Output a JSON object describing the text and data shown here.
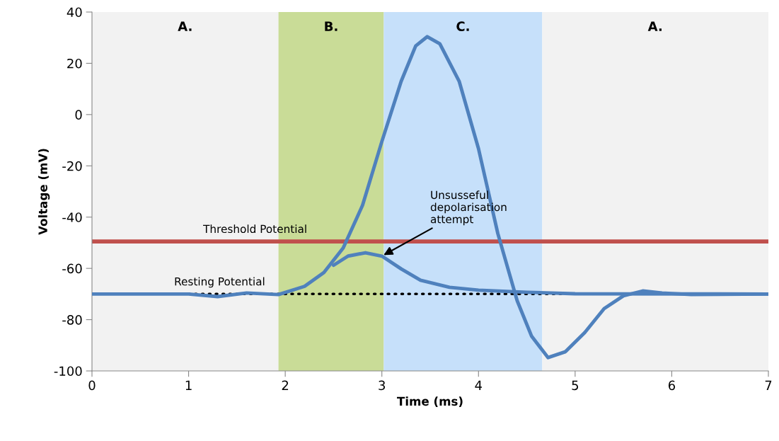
{
  "chart_data": {
    "type": "line",
    "xlabel": "Time (ms)",
    "ylabel": "Voltage (mV)",
    "xlim": [
      0,
      7
    ],
    "xticks": [
      0,
      1,
      2,
      3,
      4,
      5,
      6,
      7
    ],
    "ylim": [
      -100,
      40
    ],
    "yticks": [
      -100,
      -80,
      -60,
      -40,
      -20,
      0,
      20,
      40
    ],
    "grid": false,
    "legend": false,
    "marker": "none",
    "line_style": "solid",
    "series": [
      {
        "color": "#4f81bd",
        "x": [
          0,
          1.0,
          1.3,
          1.6,
          1.93,
          2.2,
          2.4,
          2.6,
          2.8,
          3.0,
          3.2,
          3.35,
          3.47,
          3.6,
          3.8,
          4.0,
          4.2,
          4.4,
          4.55,
          4.72,
          4.9,
          5.1,
          5.3,
          5.5,
          5.7,
          5.9,
          6.2,
          7
        ],
        "values": [
          -70,
          -70,
          -71,
          -69.6,
          -70.2,
          -67,
          -61.6,
          -52,
          -35.4,
          -10.5,
          13,
          26.8,
          30.4,
          27.6,
          13,
          -13.3,
          -46.4,
          -72.6,
          -86.5,
          -94.8,
          -92.5,
          -85,
          -75.7,
          -70.7,
          -68.8,
          -69.6,
          -70.2,
          -70
        ]
      },
      {
        "color": "#4f81bd",
        "x": [
          2.5,
          2.65,
          2.83,
          3.0,
          3.2,
          3.4,
          3.7,
          4.0,
          4.5,
          5.0,
          7
        ],
        "values": [
          -58.8,
          -55.2,
          -53.9,
          -55.2,
          -60.2,
          -64.6,
          -67.4,
          -68.5,
          -69.3,
          -69.9,
          -70
        ]
      }
    ],
    "ref_lines": [
      {
        "axis": "y",
        "value": -49.5,
        "label": "Threshold Potential",
        "color": "#c0504d",
        "line_style": "solid"
      },
      {
        "axis": "y",
        "value": -70,
        "label": "Resting Potential",
        "color": "#000000",
        "line_style": "dotted"
      }
    ],
    "bands": [
      {
        "axis": "x",
        "from": 0,
        "to": 1.93,
        "label": "A.",
        "color": "#f2f2f2"
      },
      {
        "axis": "x",
        "from": 1.93,
        "to": 3.02,
        "label": "B.",
        "color": "#c9dc97"
      },
      {
        "axis": "x",
        "from": 3.02,
        "to": 4.66,
        "label": "C.",
        "color": "#c6e0fa"
      },
      {
        "axis": "x",
        "from": 4.66,
        "to": 7,
        "label": "A.",
        "color": "#f2f2f2"
      }
    ],
    "annotations": [
      {
        "text": "Unsusseful\ndepolarisation\nattempt",
        "x": 3.0,
        "y": -55.2
      }
    ]
  }
}
